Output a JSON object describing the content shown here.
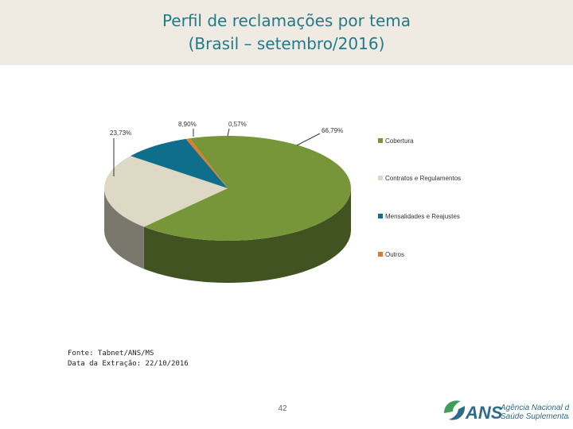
{
  "header": {
    "title_line1": "Perfil de reclamações por tema",
    "title_line2": "(Brasil – setembro/2016)"
  },
  "chart_data": {
    "type": "pie",
    "title": "",
    "slices": [
      {
        "name": "Cobertura",
        "value": 66.79,
        "label": "66,79%",
        "color": "#77963a"
      },
      {
        "name": "Contratos e Regulamentos",
        "value": 23.73,
        "label": "23,73%",
        "color": "#ddd9c4"
      },
      {
        "name": "Mensalidades e Reajustes",
        "value": 8.9,
        "label": "8,90%",
        "color": "#0e6e8c"
      },
      {
        "name": "Outros",
        "value": 0.57,
        "label": "0,57%",
        "color": "#e07b2a"
      }
    ],
    "legend_position": "right",
    "style": "3d"
  },
  "footer": {
    "source": "Fonte: Tabnet/ANS/MS",
    "extraction": "Data da Extração: 22/10/2016",
    "page_number": "42",
    "logo_abbr": "ANS",
    "logo_line1": "Agência Nacional de",
    "logo_line2": "Saúde Suplementar"
  }
}
